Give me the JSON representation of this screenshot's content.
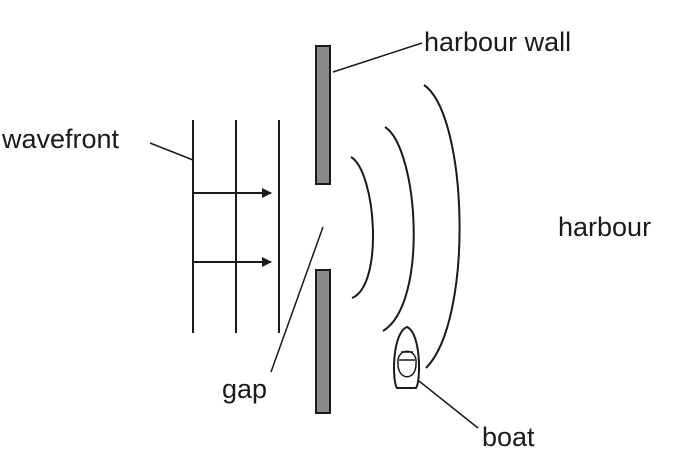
{
  "labels": {
    "harbour_wall": "harbour wall",
    "wavefront": "wavefront",
    "harbour": "harbour",
    "gap": "gap",
    "boat": "boat"
  },
  "colors": {
    "ink": "#1a1a1a",
    "wall_fill": "#8a8a8a",
    "background": "#ffffff"
  }
}
